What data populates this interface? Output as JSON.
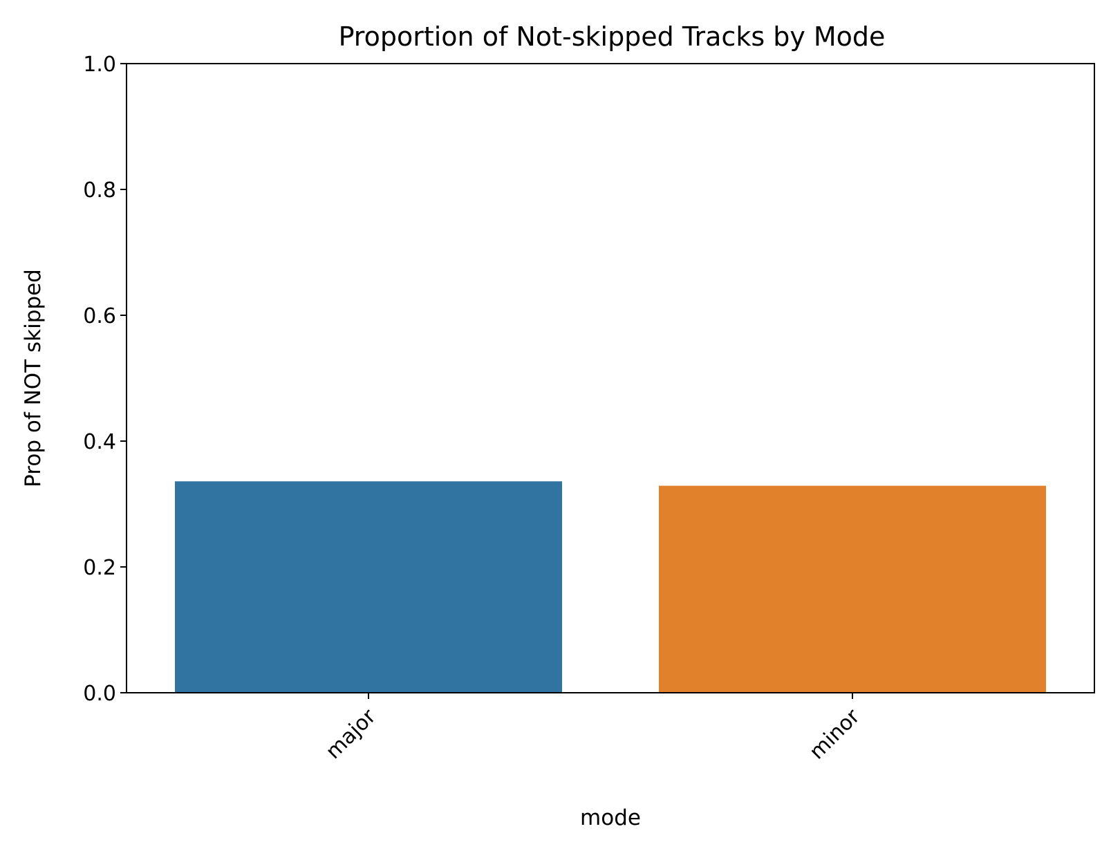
{
  "chart_data": {
    "type": "bar",
    "title": "Proportion of Not-skipped Tracks by Mode",
    "xlabel": "mode",
    "ylabel": "Prop of NOT skipped",
    "categories": [
      "major",
      "minor"
    ],
    "values": [
      0.336,
      0.329
    ],
    "colors": [
      "#3274a1",
      "#e1812c"
    ],
    "ylim": [
      0,
      1.0
    ],
    "yticks": [
      "0.0",
      "0.2",
      "0.4",
      "0.6",
      "0.8",
      "1.0"
    ],
    "grid": false,
    "legend": "none"
  }
}
